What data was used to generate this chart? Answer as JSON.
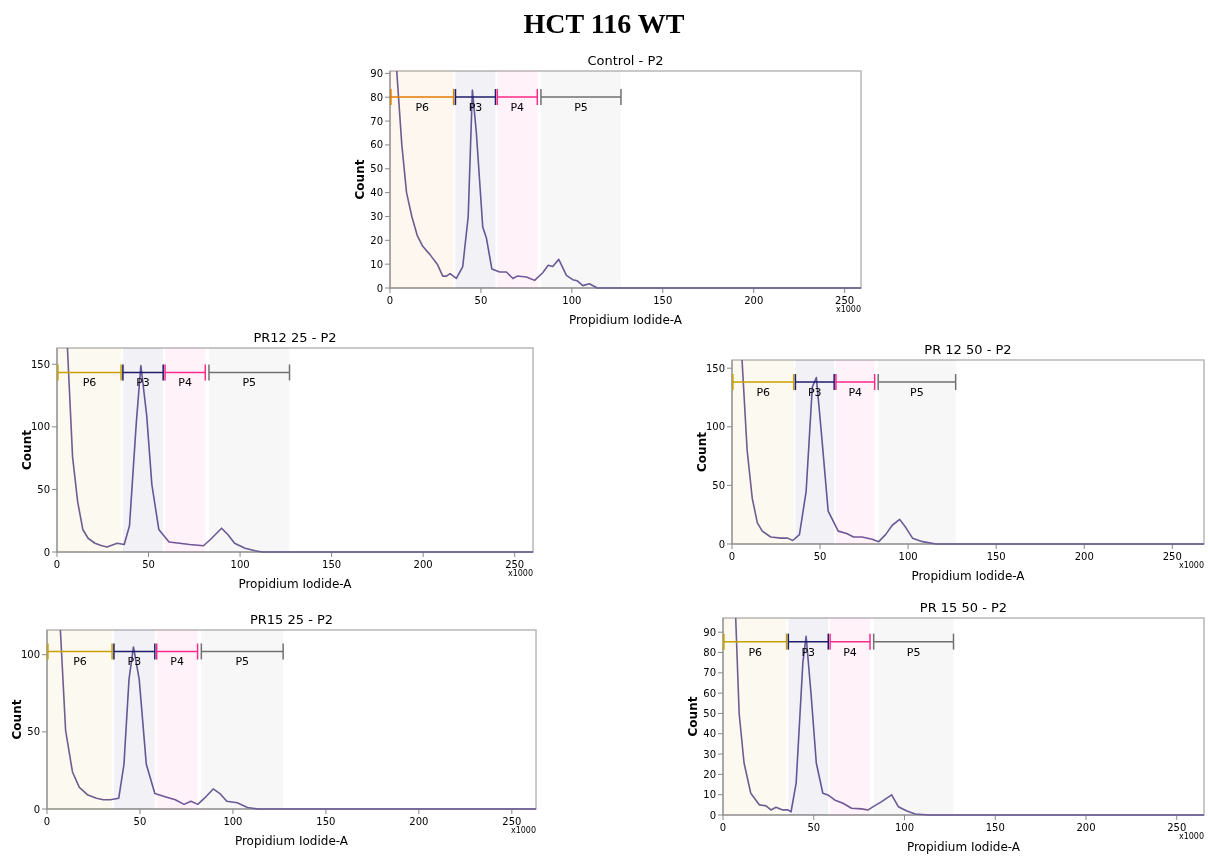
{
  "chart_data": [
    {
      "type": "line",
      "title": "Control - P2",
      "xlabel": "Propidium Iodide-A",
      "ylabel": "Count",
      "annotations": [
        "HCT 116 WT",
        "x1000"
      ],
      "xlim": [
        0,
        259
      ],
      "xticks": [
        0,
        50,
        100,
        150,
        200,
        250
      ],
      "ylim": [
        0,
        91
      ],
      "yticks": [
        0,
        10,
        20,
        30,
        40,
        50,
        60,
        70,
        80,
        90
      ],
      "series": [
        {
          "color": "#6a5a9a",
          "x": [
            3.7,
            6.5,
            9.1,
            12,
            15,
            18,
            22,
            26,
            29,
            31,
            33,
            36.5,
            40,
            43,
            45.3,
            47.5,
            51,
            53,
            56,
            60.3,
            64,
            67.6,
            70,
            75,
            79.5,
            84,
            87,
            89.5,
            92.8,
            97,
            100.5,
            103,
            106,
            109.6,
            114,
            150,
            200,
            259
          ],
          "values": [
            91,
            60,
            40,
            30,
            22,
            17.5,
            14,
            10,
            5,
            5,
            6,
            4,
            9,
            30,
            83,
            65,
            25.6,
            21,
            8,
            6.7,
            6.7,
            4,
            5,
            4.6,
            3.2,
            6.4,
            9.5,
            9,
            12,
            5.3,
            3.5,
            3,
            1,
            1.8,
            0,
            0,
            0,
            0
          ]
        }
      ],
      "bands": [
        {
          "axis": "x",
          "from": 0.5,
          "to": 35,
          "label": "P6",
          "color": "#e07b00"
        },
        {
          "axis": "x",
          "from": 36,
          "to": 58,
          "label": "P3",
          "color": "#1c1c6b"
        },
        {
          "axis": "x",
          "from": 59,
          "to": 81,
          "label": "P4",
          "color": "#ff2a8a"
        },
        {
          "axis": "x",
          "from": 83,
          "to": 127,
          "label": "P5",
          "color": "#707070"
        }
      ]
    },
    {
      "type": "line",
      "title": "PR12 25 - P2",
      "xlabel": "Propidium Iodide-A",
      "ylabel": "Count",
      "annotations": [
        "x1000"
      ],
      "xlim": [
        0,
        260
      ],
      "xticks": [
        0,
        50,
        100,
        150,
        200,
        250
      ],
      "ylim": [
        0,
        163
      ],
      "yticks": [
        0,
        50,
        100,
        150
      ],
      "series": [
        {
          "color": "#6a5a9a",
          "x": [
            5.7,
            8.5,
            11.3,
            14.1,
            17,
            20.7,
            24.5,
            27.3,
            32.9,
            36.7,
            39.6,
            43.3,
            45.8,
            49,
            51.8,
            55.6,
            61.2,
            66.9,
            72.5,
            80,
            83.8,
            87.2,
            89.9,
            93.3,
            97,
            102.7,
            108.3,
            112,
            150,
            200,
            260
          ],
          "values": [
            163,
            76,
            40,
            18,
            11,
            7,
            5,
            4,
            7,
            6,
            21,
            103,
            149,
            109,
            54,
            18,
            8,
            7,
            6,
            5,
            10,
            15,
            19,
            14,
            7,
            3,
            1,
            0,
            0,
            0,
            0
          ]
        }
      ],
      "bands": [
        {
          "axis": "x",
          "from": 0.5,
          "to": 35,
          "label": "P6",
          "color": "#c8a000"
        },
        {
          "axis": "x",
          "from": 36,
          "to": 58,
          "label": "P3",
          "color": "#1c1c6b"
        },
        {
          "axis": "x",
          "from": 59,
          "to": 81,
          "label": "P4",
          "color": "#ff2a8a"
        },
        {
          "axis": "x",
          "from": 83,
          "to": 127,
          "label": "P5",
          "color": "#707070"
        }
      ]
    },
    {
      "type": "line",
      "title": "PR 12 50 - P2",
      "xlabel": "Propidium Iodide-A",
      "ylabel": "Count",
      "annotations": [
        "x1000"
      ],
      "xlim": [
        0,
        268
      ],
      "xticks": [
        0,
        50,
        100,
        150,
        200,
        250
      ],
      "ylim": [
        0,
        157
      ],
      "yticks": [
        0,
        50,
        100,
        150
      ],
      "series": [
        {
          "color": "#6a5a9a",
          "x": [
            5.7,
            8.6,
            11.5,
            14.4,
            17.2,
            22,
            27.8,
            31.6,
            34.5,
            38.3,
            42.1,
            45.6,
            47.9,
            50.8,
            54.6,
            60.3,
            65.1,
            69,
            73.8,
            79.5,
            83.3,
            87.2,
            91,
            95.2,
            98.7,
            102.5,
            108.2,
            115.9,
            123.6,
            150,
            200,
            268
          ],
          "values": [
            157,
            80,
            39,
            18,
            11,
            6,
            5,
            5,
            3,
            8,
            45,
            134,
            142,
            94,
            28,
            11,
            9,
            6,
            6,
            4,
            2,
            8,
            16,
            21,
            14,
            5,
            2,
            0,
            0,
            0,
            0,
            0
          ]
        }
      ],
      "bands": [
        {
          "axis": "x",
          "from": 0.5,
          "to": 35,
          "label": "P6",
          "color": "#c8a000"
        },
        {
          "axis": "x",
          "from": 36,
          "to": 58,
          "label": "P3",
          "color": "#1c1c6b"
        },
        {
          "axis": "x",
          "from": 59,
          "to": 81,
          "label": "P4",
          "color": "#ff2a8a"
        },
        {
          "axis": "x",
          "from": 83,
          "to": 127,
          "label": "P5",
          "color": "#707070"
        }
      ]
    },
    {
      "type": "line",
      "title": "PR15 25 - P2",
      "xlabel": "Propidium Iodide-A",
      "ylabel": "Count",
      "annotations": [
        "x1000"
      ],
      "xlim": [
        0,
        263
      ],
      "xticks": [
        0,
        50,
        100,
        150,
        200,
        250
      ],
      "ylim": [
        0,
        116
      ],
      "yticks": [
        0,
        50,
        100
      ],
      "series": [
        {
          "color": "#6a5a9a",
          "x": [
            7.2,
            10,
            13.7,
            17.4,
            22,
            26.6,
            30.3,
            34,
            38.6,
            41.4,
            44.1,
            46.5,
            49.6,
            53.4,
            58,
            63.5,
            69,
            73.7,
            77.4,
            81.1,
            84.7,
            89.4,
            93,
            96.7,
            102.3,
            107.8,
            113.4,
            150,
            200,
            263
          ],
          "values": [
            116,
            51,
            24,
            14,
            9,
            7,
            6,
            6,
            7,
            29,
            84,
            105,
            84,
            29,
            10,
            8,
            6,
            3,
            5,
            3,
            7,
            13,
            10,
            5,
            4,
            1,
            0,
            0,
            0,
            0
          ]
        }
      ],
      "bands": [
        {
          "axis": "x",
          "from": 0.5,
          "to": 35,
          "label": "P6",
          "color": "#c8a000"
        },
        {
          "axis": "x",
          "from": 36,
          "to": 58,
          "label": "P3",
          "color": "#1c1c6b"
        },
        {
          "axis": "x",
          "from": 59,
          "to": 81,
          "label": "P4",
          "color": "#ff2a8a"
        },
        {
          "axis": "x",
          "from": 83,
          "to": 127,
          "label": "P5",
          "color": "#707070"
        }
      ]
    },
    {
      "type": "line",
      "title": "PR 15 50 - P2",
      "xlabel": "Propidium Iodide-A",
      "ylabel": "Count",
      "annotations": [
        "x1000"
      ],
      "xlim": [
        0,
        265
      ],
      "xticks": [
        0,
        50,
        100,
        150,
        200,
        250
      ],
      "ylim": [
        0,
        97
      ],
      "yticks": [
        0,
        10,
        20,
        30,
        40,
        50,
        60,
        70,
        80,
        90
      ],
      "series": [
        {
          "color": "#6a5a9a",
          "x": [
            7,
            8.9,
            11.6,
            15.3,
            20,
            23.7,
            26.4,
            29.2,
            32.9,
            35.7,
            37.5,
            40.3,
            44,
            45.8,
            48.6,
            51.4,
            55,
            57.8,
            61.5,
            66.1,
            70.8,
            76.3,
            80,
            82.8,
            87.4,
            92.9,
            96.6,
            101.3,
            105.9,
            113.3,
            150,
            200,
            265
          ],
          "values": [
            97,
            50,
            25.6,
            10.7,
            5,
            4.5,
            2.5,
            3.8,
            2.5,
            2.5,
            1.6,
            15.7,
            75,
            88,
            58.6,
            25.6,
            10.7,
            9.9,
            7.4,
            5.8,
            3.3,
            3,
            2.5,
            4.1,
            6.6,
            9.9,
            4.1,
            2,
            0.5,
            0,
            0,
            0,
            0
          ]
        }
      ],
      "bands": [
        {
          "axis": "x",
          "from": 0.5,
          "to": 35,
          "label": "P6",
          "color": "#c8a000"
        },
        {
          "axis": "x",
          "from": 36,
          "to": 58,
          "label": "P3",
          "color": "#1c1c6b"
        },
        {
          "axis": "x",
          "from": 59,
          "to": 81,
          "label": "P4",
          "color": "#ff2a8a"
        },
        {
          "axis": "x",
          "from": 83,
          "to": 127,
          "label": "P5",
          "color": "#707070"
        }
      ]
    }
  ]
}
